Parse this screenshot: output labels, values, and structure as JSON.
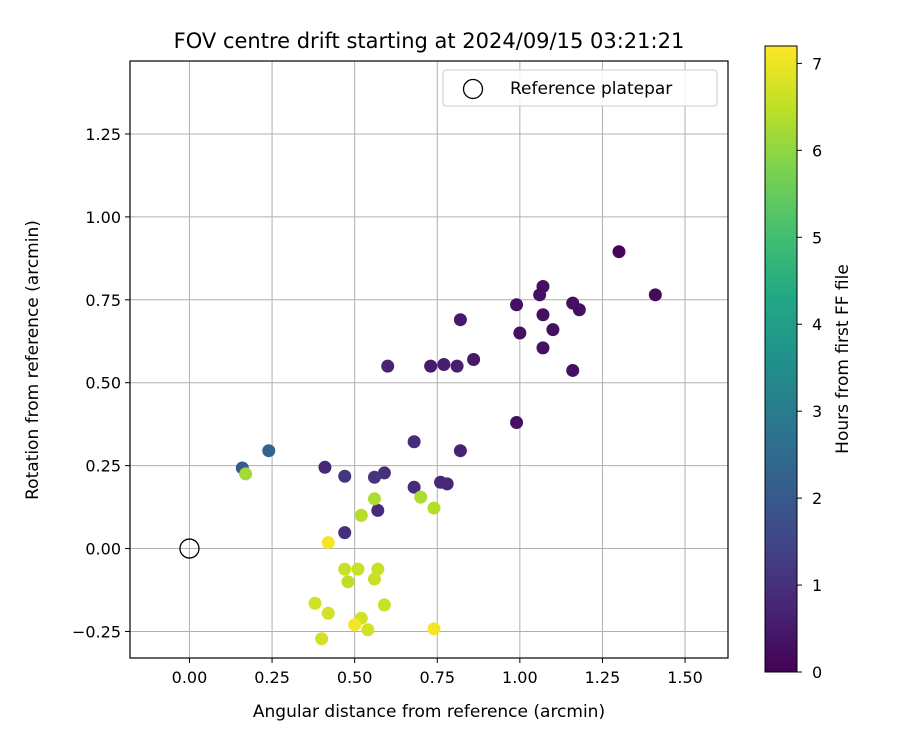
{
  "chart_data": {
    "type": "scatter",
    "title": "FOV centre drift starting at 2024/09/15 03:21:21",
    "xlabel": "Angular distance from reference (arcmin)",
    "ylabel": "Rotation from reference (arcmin)",
    "xlim": [
      -0.18,
      1.63
    ],
    "ylim": [
      -0.33,
      1.47
    ],
    "xticks": [
      "0.00",
      "0.25",
      "0.50",
      "0.75",
      "1.00",
      "1.25",
      "1.50"
    ],
    "xtick_values": [
      0,
      0.25,
      0.5,
      0.75,
      1.0,
      1.25,
      1.5
    ],
    "yticks": [
      "−0.25",
      "0.00",
      "0.25",
      "0.50",
      "0.75",
      "1.00",
      "1.25"
    ],
    "ytick_values": [
      -0.25,
      0,
      0.25,
      0.5,
      0.75,
      1.0,
      1.25
    ],
    "grid": true,
    "legend": {
      "placement": "top-right",
      "entries": [
        "Reference platepar"
      ]
    },
    "reference_point": {
      "x": 0.0,
      "y": 0.0
    },
    "colorbar": {
      "label": "Hours from first FF file",
      "min": 0,
      "max": 7.2,
      "ticks": [
        "0",
        "1",
        "2",
        "3",
        "4",
        "5",
        "6",
        "7"
      ],
      "tick_values": [
        0,
        1,
        2,
        3,
        4,
        5,
        6,
        7
      ],
      "colormap": "viridis"
    },
    "points": [
      {
        "x": 1.3,
        "y": 0.895,
        "c": 0.1
      },
      {
        "x": 1.41,
        "y": 0.765,
        "c": 0.2
      },
      {
        "x": 1.07,
        "y": 0.79,
        "c": 0.3
      },
      {
        "x": 1.06,
        "y": 0.765,
        "c": 0.3
      },
      {
        "x": 0.99,
        "y": 0.735,
        "c": 0.3
      },
      {
        "x": 1.16,
        "y": 0.74,
        "c": 0.3
      },
      {
        "x": 1.18,
        "y": 0.72,
        "c": 0.3
      },
      {
        "x": 1.07,
        "y": 0.705,
        "c": 0.3
      },
      {
        "x": 0.82,
        "y": 0.69,
        "c": 0.5
      },
      {
        "x": 1.1,
        "y": 0.66,
        "c": 0.3
      },
      {
        "x": 1.0,
        "y": 0.65,
        "c": 0.3
      },
      {
        "x": 1.07,
        "y": 0.605,
        "c": 0.3
      },
      {
        "x": 0.86,
        "y": 0.57,
        "c": 0.5
      },
      {
        "x": 0.77,
        "y": 0.555,
        "c": 0.6
      },
      {
        "x": 0.81,
        "y": 0.55,
        "c": 0.6
      },
      {
        "x": 0.73,
        "y": 0.55,
        "c": 0.5
      },
      {
        "x": 0.6,
        "y": 0.55,
        "c": 0.7
      },
      {
        "x": 1.16,
        "y": 0.537,
        "c": 0.3
      },
      {
        "x": 0.99,
        "y": 0.38,
        "c": 0.3
      },
      {
        "x": 0.68,
        "y": 0.322,
        "c": 0.9
      },
      {
        "x": 0.24,
        "y": 0.295,
        "c": 2.3
      },
      {
        "x": 0.82,
        "y": 0.295,
        "c": 0.7
      },
      {
        "x": 0.16,
        "y": 0.243,
        "c": 2.0
      },
      {
        "x": 0.41,
        "y": 0.245,
        "c": 0.8
      },
      {
        "x": 0.59,
        "y": 0.228,
        "c": 1.0
      },
      {
        "x": 0.47,
        "y": 0.218,
        "c": 1.1
      },
      {
        "x": 0.56,
        "y": 0.215,
        "c": 1.1
      },
      {
        "x": 0.76,
        "y": 0.2,
        "c": 0.8
      },
      {
        "x": 0.78,
        "y": 0.195,
        "c": 0.8
      },
      {
        "x": 0.68,
        "y": 0.185,
        "c": 0.9
      },
      {
        "x": 0.57,
        "y": 0.115,
        "c": 0.9
      },
      {
        "x": 0.47,
        "y": 0.048,
        "c": 1.0
      },
      {
        "x": 0.17,
        "y": 0.225,
        "c": 6.2
      },
      {
        "x": 0.56,
        "y": 0.15,
        "c": 6.3
      },
      {
        "x": 0.7,
        "y": 0.155,
        "c": 6.3
      },
      {
        "x": 0.74,
        "y": 0.122,
        "c": 6.4
      },
      {
        "x": 0.52,
        "y": 0.1,
        "c": 6.4
      },
      {
        "x": 0.42,
        "y": 0.018,
        "c": 7.1
      },
      {
        "x": 0.47,
        "y": -0.062,
        "c": 6.6
      },
      {
        "x": 0.51,
        "y": -0.062,
        "c": 6.6
      },
      {
        "x": 0.57,
        "y": -0.062,
        "c": 6.6
      },
      {
        "x": 0.48,
        "y": -0.1,
        "c": 6.5
      },
      {
        "x": 0.56,
        "y": -0.092,
        "c": 6.6
      },
      {
        "x": 0.38,
        "y": -0.165,
        "c": 6.7
      },
      {
        "x": 0.59,
        "y": -0.17,
        "c": 6.6
      },
      {
        "x": 0.42,
        "y": -0.195,
        "c": 6.7
      },
      {
        "x": 0.52,
        "y": -0.21,
        "c": 6.7
      },
      {
        "x": 0.5,
        "y": -0.23,
        "c": 7.1
      },
      {
        "x": 0.54,
        "y": -0.245,
        "c": 6.7
      },
      {
        "x": 0.74,
        "y": -0.242,
        "c": 7.1
      },
      {
        "x": 0.4,
        "y": -0.272,
        "c": 6.7
      }
    ]
  }
}
